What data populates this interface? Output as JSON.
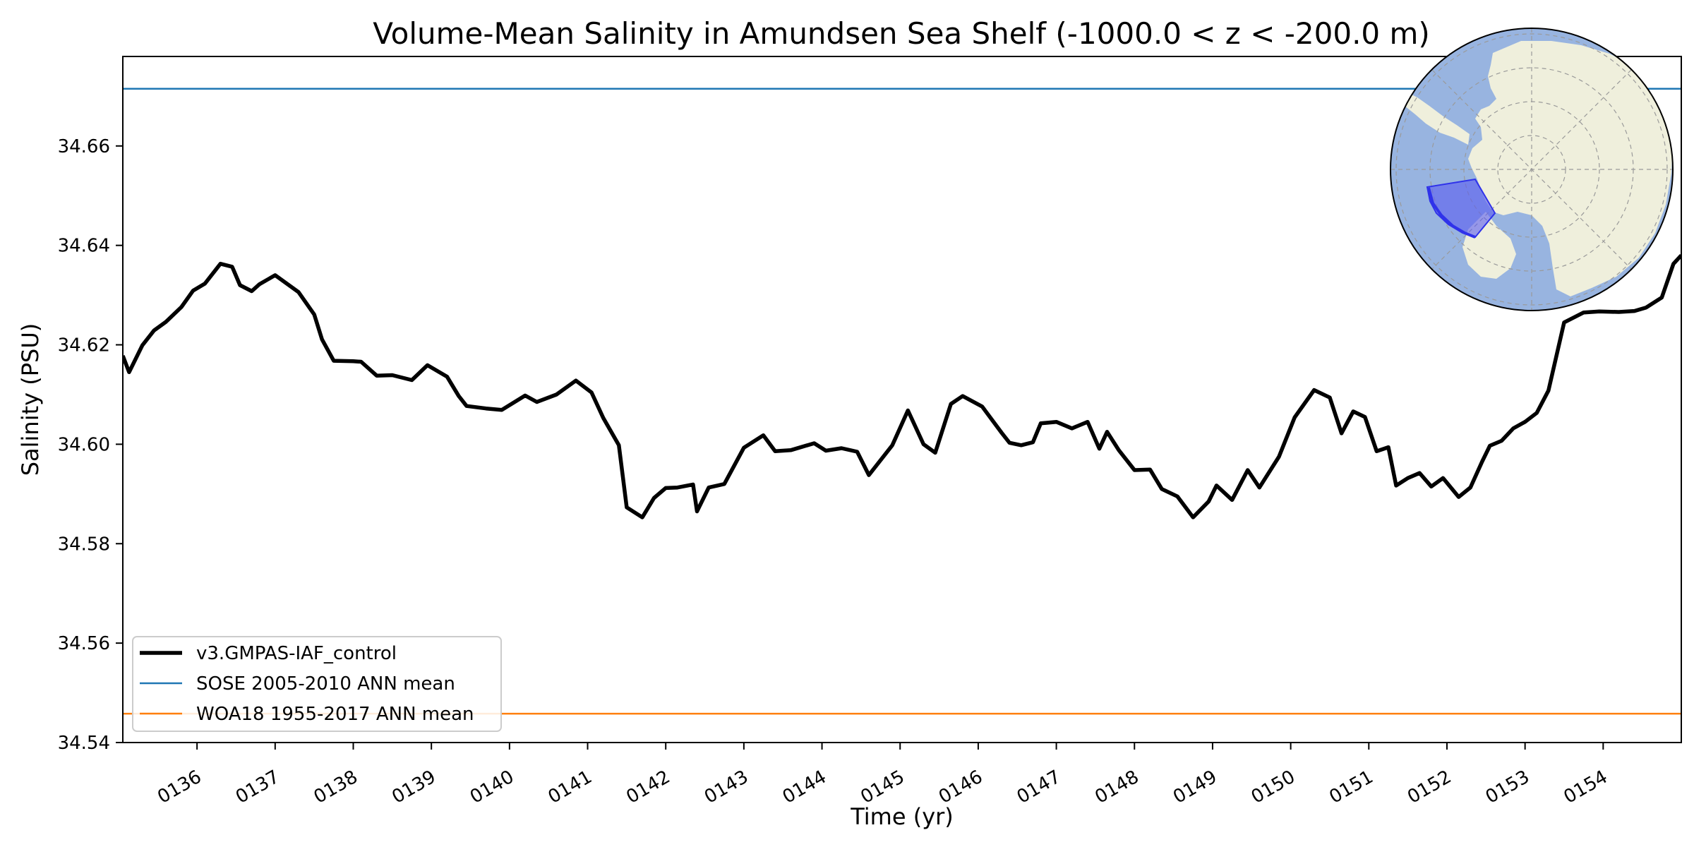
{
  "chart_data": {
    "type": "line",
    "title": "Volume-Mean Salinity in Amundsen Sea Shelf (-1000.0 < z < -200.0 m)",
    "xlabel": "Time (yr)",
    "ylabel": "Salinity (PSU)",
    "xlim": [
      135.05,
      155.0
    ],
    "ylim": [
      34.54,
      34.678
    ],
    "x_ticks": [
      136,
      137,
      138,
      139,
      140,
      141,
      142,
      143,
      144,
      145,
      146,
      147,
      148,
      149,
      150,
      151,
      152,
      153,
      154
    ],
    "x_tick_labels": [
      "0136",
      "0137",
      "0138",
      "0139",
      "0140",
      "0141",
      "0142",
      "0143",
      "0144",
      "0145",
      "0146",
      "0147",
      "0148",
      "0149",
      "0150",
      "0151",
      "0152",
      "0153",
      "0154"
    ],
    "y_ticks": [
      34.54,
      34.56,
      34.58,
      34.6,
      34.62,
      34.64,
      34.66
    ],
    "y_tick_labels": [
      "34.54",
      "34.56",
      "34.58",
      "34.60",
      "34.62",
      "34.64",
      "34.66"
    ],
    "grid": false,
    "legend_position": "lower-left",
    "series": [
      {
        "name": "v3.GMPAS-IAF_control",
        "color": "#000000",
        "x": [
          135.05,
          135.13,
          135.3,
          135.45,
          135.6,
          135.8,
          135.95,
          136.1,
          136.3,
          136.45,
          136.55,
          136.7,
          136.8,
          137.0,
          137.3,
          137.5,
          137.6,
          137.75,
          138.0,
          138.1,
          138.3,
          138.5,
          138.75,
          138.95,
          139.2,
          139.35,
          139.45,
          139.7,
          139.9,
          140.2,
          140.35,
          140.6,
          140.85,
          141.05,
          141.2,
          141.4,
          141.5,
          141.7,
          141.85,
          142.0,
          142.15,
          142.35,
          142.4,
          142.55,
          142.75,
          143.0,
          143.25,
          143.4,
          143.6,
          143.9,
          144.05,
          144.25,
          144.45,
          144.6,
          144.9,
          145.1,
          145.3,
          145.45,
          145.65,
          145.8,
          146.05,
          146.3,
          146.4,
          146.55,
          146.7,
          146.8,
          147.0,
          147.2,
          147.4,
          147.55,
          147.65,
          147.8,
          148.0,
          148.2,
          148.35,
          148.55,
          148.75,
          148.95,
          149.05,
          149.25,
          149.45,
          149.6,
          149.85,
          150.05,
          150.3,
          150.5,
          150.65,
          150.8,
          150.95,
          151.1,
          151.25,
          151.35,
          151.5,
          151.65,
          151.8,
          151.95,
          152.15,
          152.3,
          152.45,
          152.55,
          152.7,
          152.85,
          153.0,
          153.15,
          153.3,
          153.5,
          153.75,
          153.95,
          154.2,
          154.4,
          154.55,
          154.75,
          154.9,
          155.0
        ],
        "values": [
          34.6178,
          34.6145,
          34.6199,
          34.6229,
          34.6246,
          34.6276,
          34.6309,
          34.6323,
          34.6363,
          34.6357,
          34.632,
          34.6308,
          34.6322,
          34.634,
          34.6306,
          34.6261,
          34.6211,
          34.6168,
          34.6167,
          34.6166,
          34.6138,
          34.6139,
          34.6129,
          34.6159,
          34.6136,
          34.6097,
          34.6077,
          34.6072,
          34.6069,
          34.6098,
          34.6085,
          34.61,
          34.6128,
          34.6104,
          34.6053,
          34.5998,
          34.5873,
          34.5853,
          34.5892,
          34.5912,
          34.5913,
          34.5919,
          34.5865,
          34.5913,
          34.592,
          34.5993,
          34.6018,
          34.5986,
          34.5988,
          34.6002,
          34.5987,
          34.5992,
          34.5985,
          34.5938,
          34.5998,
          34.6068,
          34.6,
          34.5983,
          34.6081,
          34.6097,
          34.6076,
          34.6023,
          34.6003,
          34.5998,
          34.6004,
          34.6042,
          34.6045,
          34.6032,
          34.6045,
          34.5991,
          34.6025,
          34.5988,
          34.5948,
          34.5949,
          34.591,
          34.5895,
          34.5853,
          34.5885,
          34.5917,
          34.5888,
          34.5948,
          34.5913,
          34.5975,
          34.6054,
          34.6109,
          34.6094,
          34.6022,
          34.6066,
          34.6055,
          34.5986,
          34.5994,
          34.5917,
          34.5932,
          34.5942,
          34.5915,
          34.5932,
          34.5894,
          34.5913,
          34.5965,
          34.5997,
          34.6007,
          34.6032,
          34.6045,
          34.6063,
          34.6108,
          34.6245,
          34.6265,
          34.6267,
          34.6266,
          34.6268,
          34.6275,
          34.6295,
          34.6363,
          34.638
        ]
      },
      {
        "name": "SOSE 2005-2010 ANN mean",
        "color": "#1f77b4",
        "constant": 34.6715
      },
      {
        "name": "WOA18 1955-2017 ANN mean",
        "color": "#ff7f0e",
        "constant": 34.5458
      }
    ],
    "inset_map": {
      "projection": "south-polar-stereographic",
      "region": "Amundsen Sea Shelf",
      "ocean_color": "#98b4e0",
      "land_color": "#efefdc",
      "region_fill": "#5a5cf0",
      "region_edge": "#2f32ea"
    }
  }
}
